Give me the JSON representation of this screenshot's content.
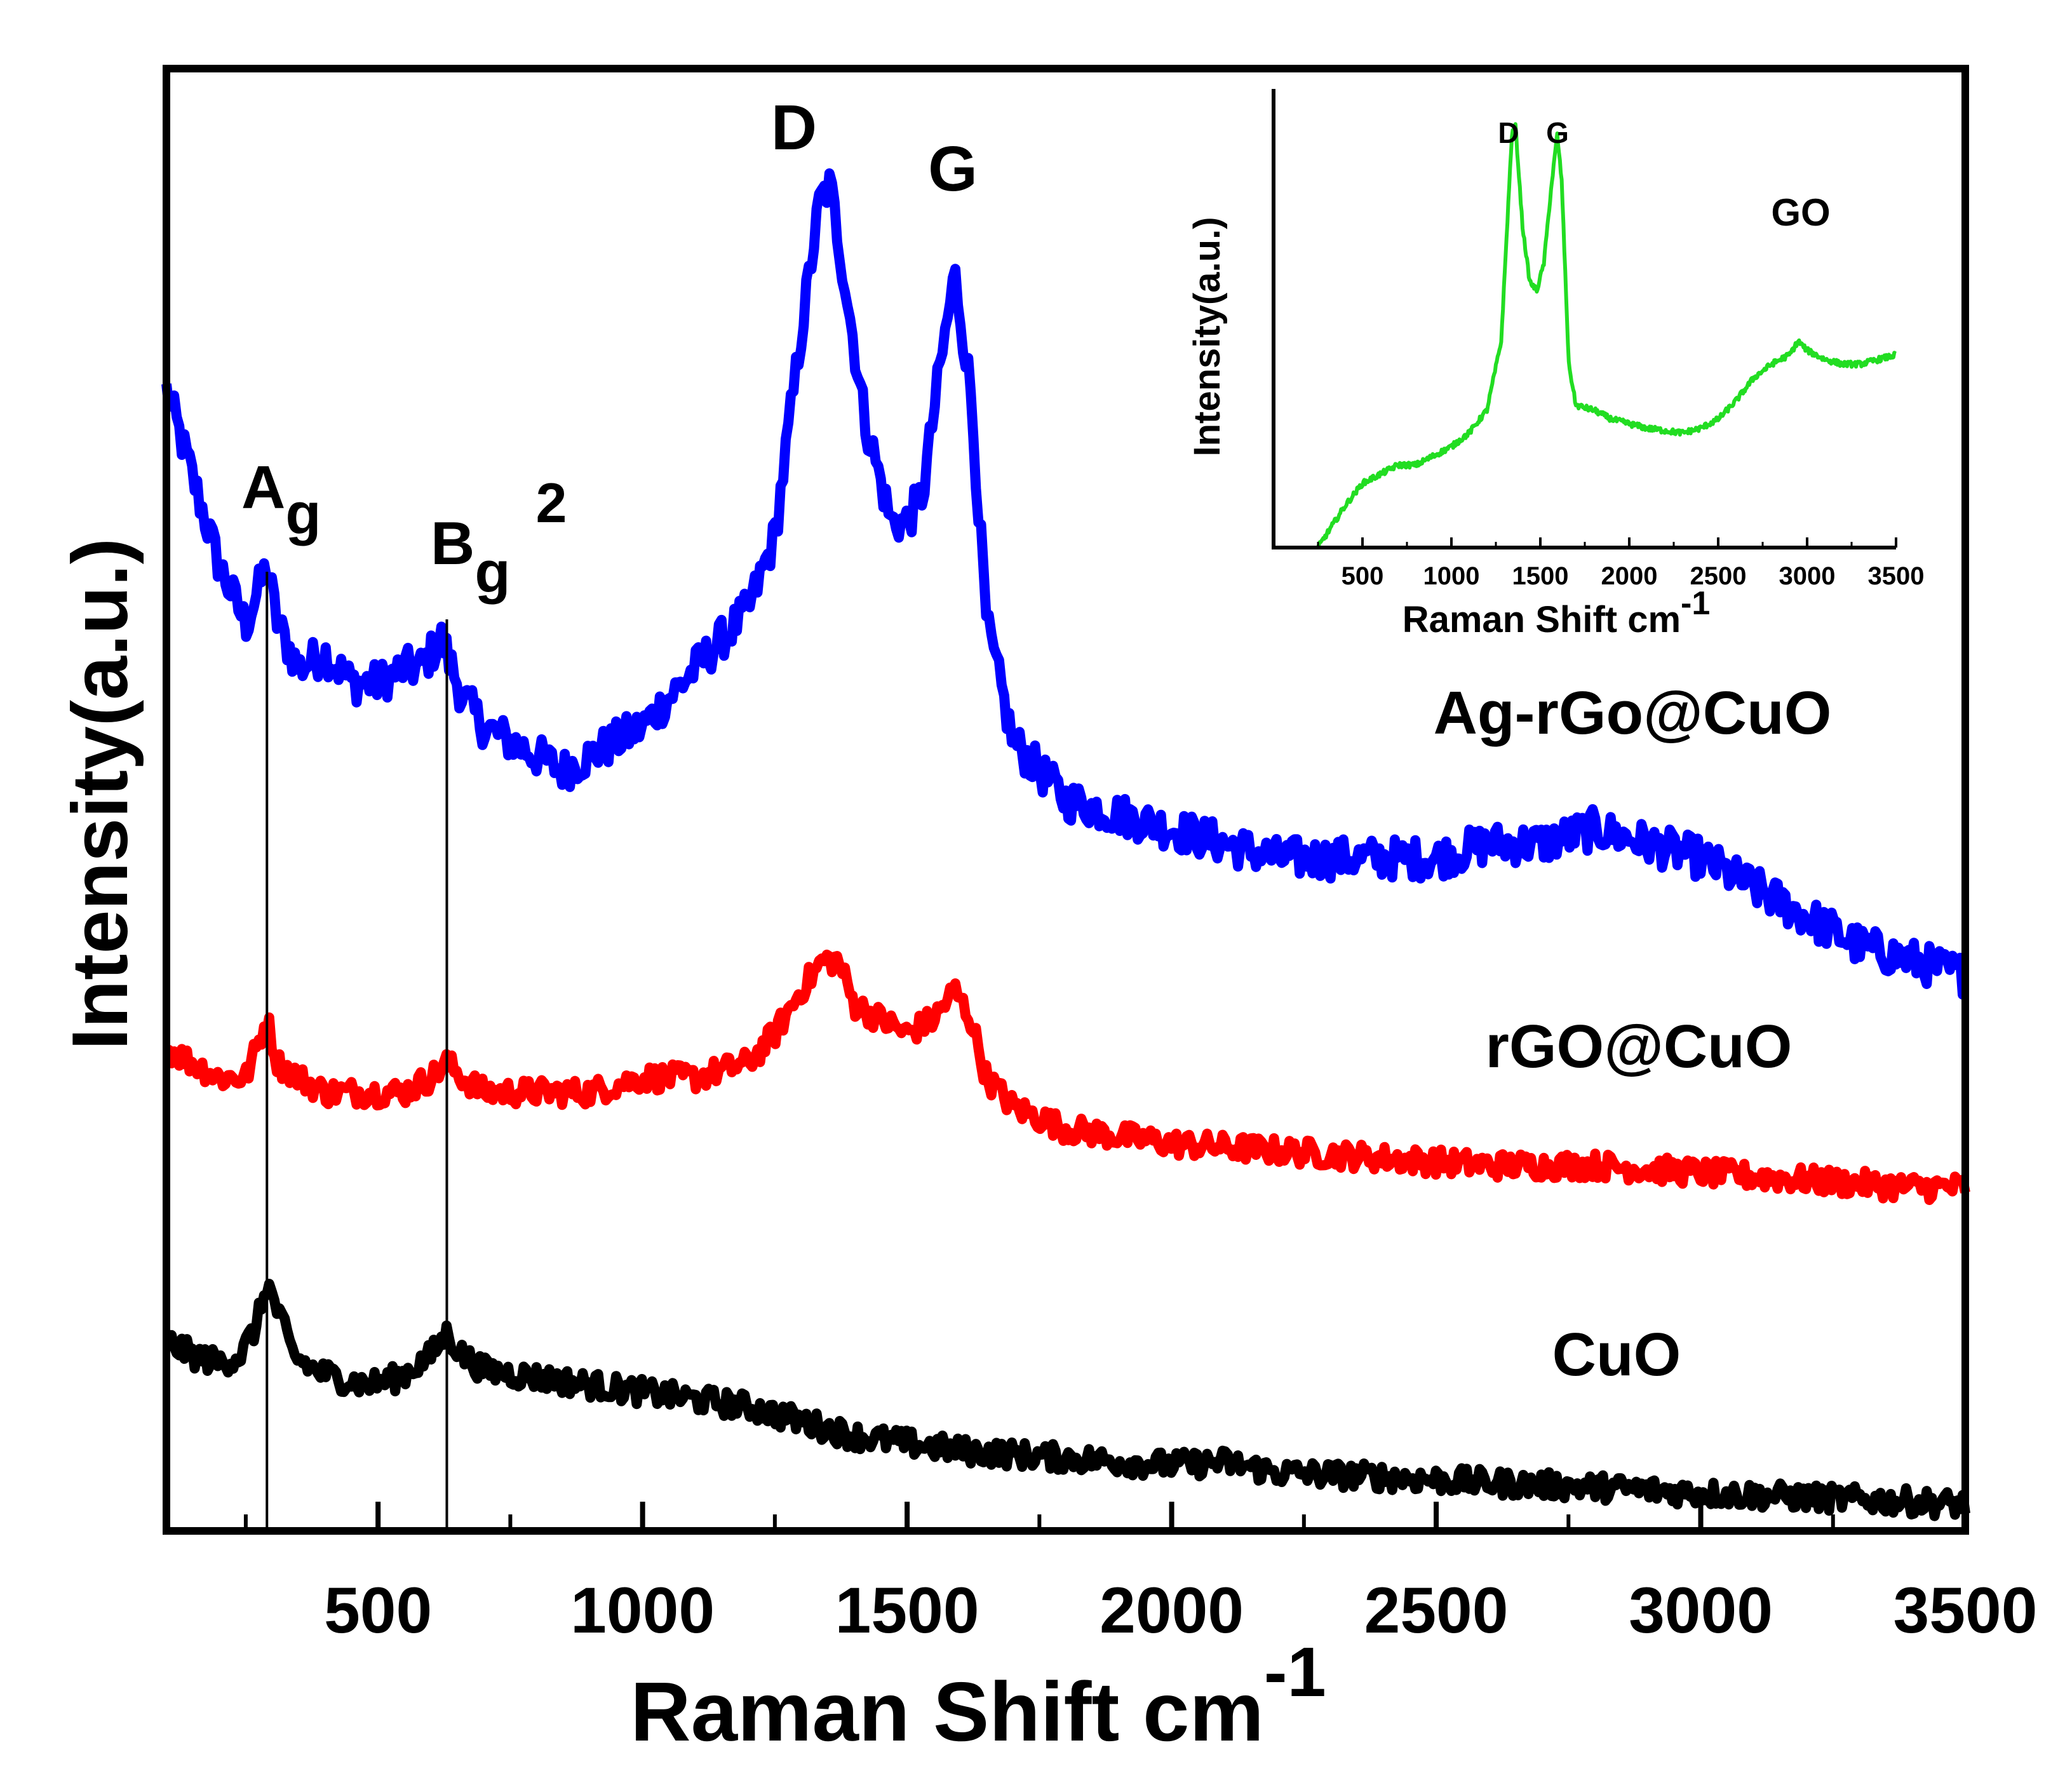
{
  "chart_data": [
    {
      "type": "line",
      "title": "",
      "xlabel": "Raman Shift cm",
      "xlabel_superscript": "-1",
      "ylabel": "Intensity(a.u.)",
      "xlim": [
        100,
        3500
      ],
      "ylim": [
        0,
        100
      ],
      "x_ticks": [
        500,
        1000,
        1500,
        2000,
        2500,
        3000,
        3500
      ],
      "x_tick_labels": [
        "500",
        "1000",
        "1500",
        "2000",
        "2500",
        "3000",
        "3500"
      ],
      "y_ticks_shown": false,
      "grid": false,
      "series": [
        {
          "name": "Ag-rGo@CuO",
          "color": "#0000ff",
          "points": [
            [
              100,
              78
            ],
            [
              150,
              72
            ],
            [
              200,
              66
            ],
            [
              250,
              62
            ],
            [
              290,
              66
            ],
            [
              310,
              62
            ],
            [
              350,
              59
            ],
            [
              400,
              60
            ],
            [
              450,
              58
            ],
            [
              500,
              58
            ],
            [
              550,
              59
            ],
            [
              580,
              59
            ],
            [
              620,
              61
            ],
            [
              660,
              57
            ],
            [
              700,
              55
            ],
            [
              750,
              54
            ],
            [
              800,
              53
            ],
            [
              850,
              52
            ],
            [
              900,
              53
            ],
            [
              950,
              54
            ],
            [
              1000,
              55
            ],
            [
              1050,
              57
            ],
            [
              1100,
              59
            ],
            [
              1150,
              61
            ],
            [
              1200,
              63
            ],
            [
              1250,
              68
            ],
            [
              1300,
              82
            ],
            [
              1335,
              91
            ],
            [
              1355,
              92
            ],
            [
              1380,
              86
            ],
            [
              1420,
              76
            ],
            [
              1470,
              69
            ],
            [
              1500,
              69
            ],
            [
              1530,
              71
            ],
            [
              1560,
              79
            ],
            [
              1590,
              86
            ],
            [
              1620,
              78
            ],
            [
              1650,
              62
            ],
            [
              1700,
              54
            ],
            [
              1750,
              52
            ],
            [
              1800,
              50
            ],
            [
              1900,
              49
            ],
            [
              2000,
              48
            ],
            [
              2100,
              47
            ],
            [
              2200,
              46
            ],
            [
              2300,
              46
            ],
            [
              2400,
              46
            ],
            [
              2500,
              46
            ],
            [
              2600,
              47
            ],
            [
              2700,
              47
            ],
            [
              2800,
              48
            ],
            [
              2900,
              47
            ],
            [
              3000,
              46
            ],
            [
              3100,
              44
            ],
            [
              3200,
              42
            ],
            [
              3300,
              40
            ],
            [
              3400,
              39
            ],
            [
              3500,
              38
            ]
          ],
          "noise_amplitude": 1.4
        },
        {
          "name": "rGO@CuO",
          "color": "#ff0000",
          "points": [
            [
              100,
              33
            ],
            [
              150,
              32
            ],
            [
              200,
              31
            ],
            [
              250,
              31
            ],
            [
              290,
              35
            ],
            [
              310,
              32
            ],
            [
              350,
              31
            ],
            [
              400,
              30
            ],
            [
              450,
              30
            ],
            [
              500,
              30
            ],
            [
              550,
              30
            ],
            [
              600,
              31
            ],
            [
              630,
              32
            ],
            [
              660,
              31
            ],
            [
              700,
              30
            ],
            [
              800,
              30
            ],
            [
              900,
              30
            ],
            [
              1000,
              31
            ],
            [
              1100,
              31
            ],
            [
              1200,
              32
            ],
            [
              1250,
              34
            ],
            [
              1300,
              37
            ],
            [
              1340,
              39
            ],
            [
              1370,
              39
            ],
            [
              1400,
              36
            ],
            [
              1450,
              35
            ],
            [
              1500,
              34
            ],
            [
              1550,
              35
            ],
            [
              1590,
              37
            ],
            [
              1620,
              35
            ],
            [
              1650,
              31
            ],
            [
              1700,
              29
            ],
            [
              1800,
              27.5
            ],
            [
              1900,
              27
            ],
            [
              2000,
              26.5
            ],
            [
              2200,
              26
            ],
            [
              2400,
              25.5
            ],
            [
              2600,
              25
            ],
            [
              2800,
              25
            ],
            [
              3000,
              24.5
            ],
            [
              3200,
              24
            ],
            [
              3400,
              23.5
            ],
            [
              3500,
              23.5
            ]
          ],
          "noise_amplitude": 0.9
        },
        {
          "name": "CuO",
          "color": "#000000",
          "points": [
            [
              100,
              13
            ],
            [
              150,
              12
            ],
            [
              200,
              11.5
            ],
            [
              240,
              12
            ],
            [
              270,
              14
            ],
            [
              290,
              17
            ],
            [
              310,
              15
            ],
            [
              340,
              12
            ],
            [
              380,
              11
            ],
            [
              420,
              10.5
            ],
            [
              480,
              10
            ],
            [
              540,
              10.5
            ],
            [
              600,
              12
            ],
            [
              630,
              13.5
            ],
            [
              660,
              12
            ],
            [
              700,
              11
            ],
            [
              800,
              10.5
            ],
            [
              900,
              10
            ],
            [
              1000,
              9.5
            ],
            [
              1100,
              9
            ],
            [
              1200,
              8.5
            ],
            [
              1300,
              7.5
            ],
            [
              1400,
              6.5
            ],
            [
              1500,
              6
            ],
            [
              1600,
              5.5
            ],
            [
              1800,
              5
            ],
            [
              2000,
              4.5
            ],
            [
              2100,
              4.7
            ],
            [
              2200,
              4
            ],
            [
              2400,
              3.7
            ],
            [
              2600,
              3.3
            ],
            [
              2800,
              3
            ],
            [
              3000,
              2.6
            ],
            [
              3200,
              2.3
            ],
            [
              3400,
              2
            ],
            [
              3500,
              1.8
            ]
          ],
          "noise_amplitude": 0.9
        }
      ],
      "annotations": [
        {
          "text": "A",
          "sub": "g",
          "x": 290
        },
        {
          "text": "B",
          "sub": "g",
          "sup": "2",
          "x": 620
        },
        {
          "text": "D",
          "x": 1340
        },
        {
          "text": "G",
          "x": 1590
        }
      ],
      "reference_lines_x": [
        290,
        630
      ],
      "series_labels": [
        "Ag-rGo@CuO",
        "rGO@CuO",
        "CuO"
      ]
    },
    {
      "type": "line",
      "inset": true,
      "title": "",
      "xlabel": "Raman Shift cm",
      "xlabel_superscript": "-1",
      "ylabel": "Intensity(a.u.)",
      "xlim": [
        0,
        3500
      ],
      "ylim": [
        0,
        100
      ],
      "x_ticks": [
        500,
        1000,
        1500,
        2000,
        2500,
        3000,
        3500
      ],
      "x_tick_labels": [
        "500",
        "1000",
        "1500",
        "2000",
        "2500",
        "3000",
        "3500"
      ],
      "series": [
        {
          "name": "GO",
          "color": "#22dd22",
          "points": [
            [
              250,
              0
            ],
            [
              400,
              9
            ],
            [
              500,
              14
            ],
            [
              600,
              16
            ],
            [
              700,
              18
            ],
            [
              800,
              18
            ],
            [
              900,
              20
            ],
            [
              1000,
              22
            ],
            [
              1100,
              25
            ],
            [
              1200,
              30
            ],
            [
              1280,
              45
            ],
            [
              1340,
              90
            ],
            [
              1360,
              92
            ],
            [
              1400,
              70
            ],
            [
              1440,
              58
            ],
            [
              1480,
              56
            ],
            [
              1520,
              62
            ],
            [
              1560,
              78
            ],
            [
              1595,
              90
            ],
            [
              1620,
              80
            ],
            [
              1660,
              40
            ],
            [
              1700,
              31
            ],
            [
              1800,
              30
            ],
            [
              1900,
              28
            ],
            [
              2000,
              27
            ],
            [
              2100,
              26
            ],
            [
              2200,
              25.5
            ],
            [
              2300,
              25
            ],
            [
              2400,
              26
            ],
            [
              2500,
              28
            ],
            [
              2600,
              32
            ],
            [
              2700,
              37
            ],
            [
              2800,
              40
            ],
            [
              2900,
              42
            ],
            [
              2950,
              45
            ],
            [
              3000,
              43
            ],
            [
              3100,
              41
            ],
            [
              3200,
              40
            ],
            [
              3300,
              40
            ],
            [
              3400,
              41
            ],
            [
              3500,
              42
            ]
          ],
          "noise_amplitude": 0.6
        }
      ],
      "annotations": [
        {
          "text": "D",
          "x": 1340
        },
        {
          "text": "G",
          "x": 1600
        },
        {
          "text": "GO",
          "x": 2950
        }
      ]
    }
  ]
}
